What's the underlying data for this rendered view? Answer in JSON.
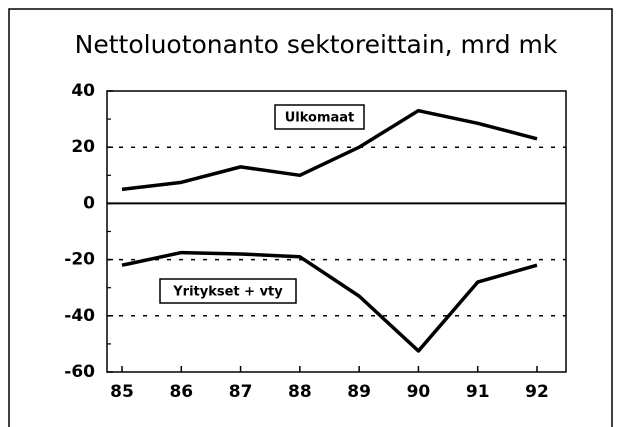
{
  "chart_data": {
    "type": "line",
    "title": "Nettoluotonanto sektoreittain, mrd mk",
    "categories": [
      "85",
      "86",
      "87",
      "88",
      "89",
      "90",
      "91",
      "92"
    ],
    "series": [
      {
        "name": "Ulkomaat",
        "color": "#000000",
        "values": [
          5,
          7.5,
          13,
          10,
          20,
          33,
          28.5,
          23
        ]
      },
      {
        "name": "Yritykset + vty",
        "color": "#000000",
        "values": [
          -22,
          -17.5,
          -18,
          -19,
          -33,
          -52.5,
          -28,
          -22
        ]
      }
    ],
    "ylim": [
      -60,
      40
    ],
    "yticks": [
      -60,
      -40,
      -20,
      0,
      20,
      40
    ],
    "grid": true
  }
}
